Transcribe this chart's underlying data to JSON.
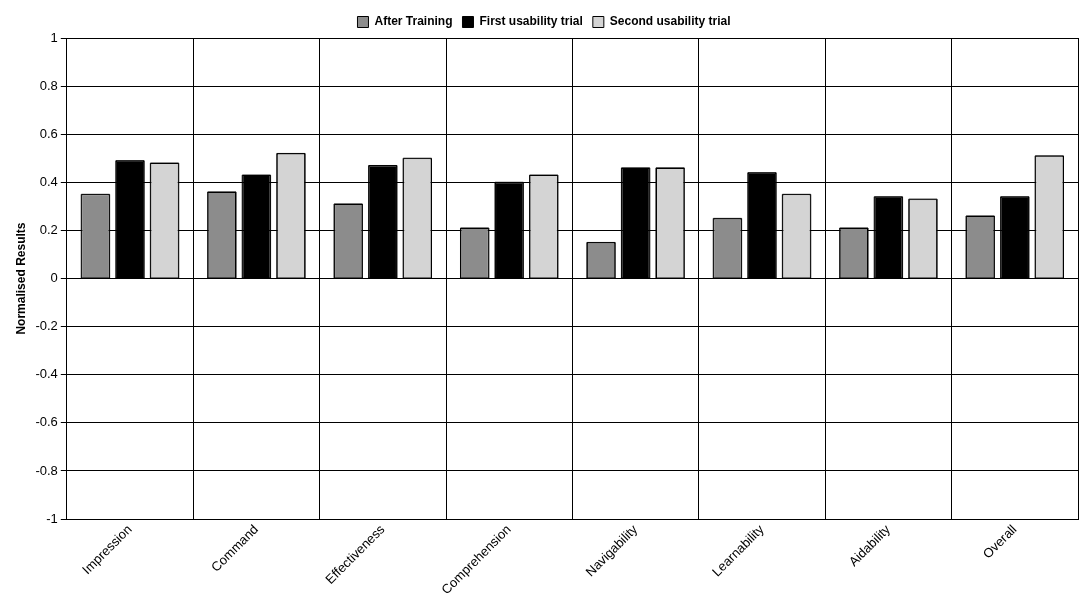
{
  "chart_data": {
    "type": "bar",
    "ylabel": "Normalised Results",
    "categories": [
      "Impression",
      "Command",
      "Effectiveness",
      "Comprehension",
      "Navigability",
      "Learnability",
      "Aidability",
      "Overall"
    ],
    "series": [
      {
        "name": "After Training",
        "color": "#8c8c8c",
        "values": [
          0.35,
          0.36,
          0.31,
          0.21,
          0.15,
          0.25,
          0.21,
          0.26
        ]
      },
      {
        "name": "First usability trial",
        "color": "#000000",
        "values": [
          0.49,
          0.43,
          0.47,
          0.4,
          0.46,
          0.44,
          0.34,
          0.34
        ]
      },
      {
        "name": "Second usability trial",
        "color": "#d4d4d4",
        "values": [
          0.48,
          0.52,
          0.5,
          0.43,
          0.46,
          0.35,
          0.33,
          0.51
        ]
      }
    ],
    "ylim": [
      -1,
      1
    ],
    "yticks": [
      -1,
      -0.8,
      -0.6,
      -0.4,
      -0.2,
      0,
      0.2,
      0.4,
      0.6,
      0.8,
      1
    ],
    "grid": true,
    "legend": "top"
  }
}
